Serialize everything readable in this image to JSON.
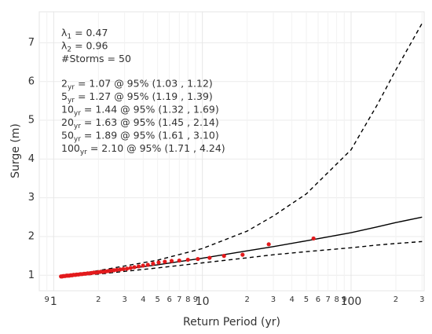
{
  "chart_data": {
    "type": "scatter",
    "xlabel": "Return Period (yr)",
    "ylabel": "Surge (m)",
    "xscale": "log",
    "grid": true,
    "xlim": [
      0.8,
      310
    ],
    "ylim": [
      0.6,
      7.8
    ],
    "xticks": [
      {
        "value": 0.9,
        "label": "9"
      },
      1,
      2,
      3,
      4,
      5,
      6,
      7,
      8,
      9,
      10,
      {
        "value": 20,
        "label": "2"
      },
      {
        "value": 30,
        "label": "3"
      },
      {
        "value": 40,
        "label": "4"
      },
      {
        "value": 50,
        "label": "5"
      },
      {
        "value": 60,
        "label": "6"
      },
      {
        "value": 70,
        "label": "7"
      },
      {
        "value": 80,
        "label": "8"
      },
      {
        "value": 90,
        "label": "9"
      },
      100,
      {
        "value": 200,
        "label": "2"
      },
      {
        "value": 300,
        "label": "3"
      }
    ],
    "yticks": [
      1,
      2,
      3,
      4,
      5,
      6,
      7
    ],
    "annotations": [
      {
        "main": "λ",
        "sub": "1",
        "rest": " = 0.47"
      },
      {
        "main": "λ",
        "sub": "2",
        "rest": " = 0.96"
      },
      {
        "main": "#Storms = 50"
      },
      {
        "main": "2",
        "sub": "yr",
        "rest": " = 1.07 @ 95% (1.03 , 1.12)"
      },
      {
        "main": "5",
        "sub": "yr",
        "rest": " = 1.27 @ 95% (1.19 , 1.39)"
      },
      {
        "main": "10",
        "sub": "yr",
        "rest": " = 1.44 @ 95% (1.32 , 1.69)"
      },
      {
        "main": "20",
        "sub": "yr",
        "rest": " = 1.63 @ 95% (1.45 , 2.14)"
      },
      {
        "main": "50",
        "sub": "yr",
        "rest": " = 1.89 @ 95% (1.61 , 3.10)"
      },
      {
        "main": "100",
        "sub": "yr",
        "rest": " = 2.10 @ 95% (1.71 , 4.24)"
      }
    ],
    "series": [
      {
        "type": "line",
        "style": "dashed",
        "color": "#000000",
        "x": [
          1.1,
          2,
          5,
          10,
          20,
          30,
          50,
          100,
          150,
          200,
          300
        ],
        "values": [
          0.97,
          1.12,
          1.39,
          1.69,
          2.14,
          2.53,
          3.1,
          4.24,
          5.4,
          6.3,
          7.5
        ]
      },
      {
        "type": "line",
        "style": "dashed",
        "color": "#000000",
        "x": [
          1.1,
          2,
          5,
          10,
          20,
          30,
          50,
          100,
          150,
          200,
          300
        ],
        "values": [
          0.97,
          1.03,
          1.19,
          1.32,
          1.45,
          1.53,
          1.61,
          1.71,
          1.78,
          1.82,
          1.87
        ]
      },
      {
        "type": "line",
        "style": "solid",
        "color": "#000000",
        "x": [
          1.1,
          2,
          5,
          10,
          20,
          30,
          50,
          100,
          150,
          200,
          300
        ],
        "values": [
          0.97,
          1.07,
          1.27,
          1.44,
          1.63,
          1.74,
          1.89,
          2.1,
          2.25,
          2.36,
          2.5
        ]
      },
      {
        "type": "scatter",
        "color": "#e31a1c",
        "x": [
          55.9,
          27.95,
          18.63,
          13.98,
          11.18,
          9.32,
          7.99,
          6.99,
          6.21,
          5.59,
          5.08,
          4.66,
          4.3,
          3.99,
          3.73,
          3.49,
          3.29,
          3.11,
          2.94,
          2.8,
          2.66,
          2.54,
          2.43,
          2.33,
          2.24,
          2.15,
          2.07,
          2.0,
          1.93,
          1.86,
          1.8,
          1.75,
          1.69,
          1.64,
          1.6,
          1.55,
          1.51,
          1.47,
          1.43,
          1.4,
          1.36,
          1.33,
          1.3,
          1.27,
          1.24,
          1.22,
          1.19,
          1.16,
          1.14,
          1.12
        ],
        "values": [
          1.95,
          1.8,
          1.53,
          1.5,
          1.45,
          1.42,
          1.4,
          1.38,
          1.37,
          1.35,
          1.33,
          1.3,
          1.27,
          1.25,
          1.23,
          1.21,
          1.19,
          1.17,
          1.16,
          1.15,
          1.14,
          1.13,
          1.12,
          1.11,
          1.1,
          1.09,
          1.09,
          1.08,
          1.07,
          1.07,
          1.06,
          1.05,
          1.05,
          1.04,
          1.04,
          1.03,
          1.03,
          1.02,
          1.02,
          1.01,
          1.01,
          1.0,
          1.0,
          0.99,
          0.99,
          0.99,
          0.98,
          0.98,
          0.97,
          0.97
        ]
      }
    ]
  }
}
